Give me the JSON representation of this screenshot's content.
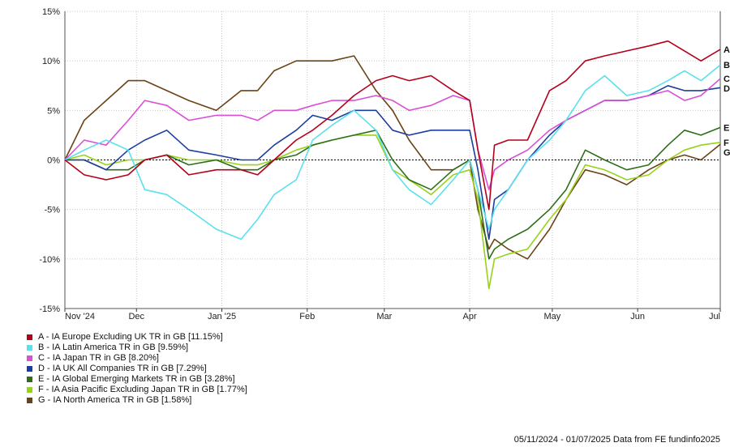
{
  "chart_data": {
    "type": "line",
    "x_axis": {
      "labels": [
        "Nov '24",
        "Dec",
        "Jan '25",
        "Feb",
        "Mar",
        "Apr",
        "May",
        "Jun",
        "Jul"
      ],
      "range": [
        "2024-11-05",
        "2025-07-01"
      ]
    },
    "y_axis": {
      "range": [
        -15,
        15
      ],
      "ticks": [
        15,
        10,
        5,
        0,
        -5,
        -10,
        -15
      ],
      "tick_labels": [
        "15%",
        "10%",
        "5%",
        "0%",
        "-5%",
        "-10%",
        "-15%"
      ],
      "reference_line": 0
    },
    "grid": true,
    "legend_position": "bottom-left",
    "series": [
      {
        "id": "A",
        "legend": "A - IA Europe Excluding UK TR in GB [11.15%]",
        "color": "#b5001b",
        "points": [
          [
            "2024-11-05",
            0
          ],
          [
            "2024-11-12",
            -1.5
          ],
          [
            "2024-11-20",
            -2
          ],
          [
            "2024-11-28",
            -1.5
          ],
          [
            "2024-12-04",
            0
          ],
          [
            "2024-12-12",
            0.5
          ],
          [
            "2024-12-20",
            -1.5
          ],
          [
            "2024-12-30",
            -1
          ],
          [
            "2025-01-08",
            -1
          ],
          [
            "2025-01-14",
            -1.5
          ],
          [
            "2025-01-20",
            0
          ],
          [
            "2025-01-28",
            2
          ],
          [
            "2025-02-03",
            3
          ],
          [
            "2025-02-10",
            4.5
          ],
          [
            "2025-02-18",
            6.5
          ],
          [
            "2025-02-26",
            8
          ],
          [
            "2025-03-04",
            8.5
          ],
          [
            "2025-03-10",
            8
          ],
          [
            "2025-03-18",
            8.5
          ],
          [
            "2025-03-26",
            7
          ],
          [
            "2025-04-01",
            6
          ],
          [
            "2025-04-04",
            1
          ],
          [
            "2025-04-08",
            -5
          ],
          [
            "2025-04-10",
            1.5
          ],
          [
            "2025-04-15",
            2
          ],
          [
            "2025-04-22",
            2
          ],
          [
            "2025-04-30",
            7
          ],
          [
            "2025-05-06",
            8
          ],
          [
            "2025-05-13",
            10
          ],
          [
            "2025-05-20",
            10.5
          ],
          [
            "2025-05-28",
            11
          ],
          [
            "2025-06-05",
            11.5
          ],
          [
            "2025-06-12",
            12
          ],
          [
            "2025-06-18",
            11
          ],
          [
            "2025-06-24",
            10
          ],
          [
            "2025-07-01",
            11.15
          ]
        ]
      },
      {
        "id": "B",
        "legend": "B - IA Latin America TR in GB [9.59%]",
        "color": "#5ae1ed",
        "points": [
          [
            "2024-11-05",
            0
          ],
          [
            "2024-11-12",
            1
          ],
          [
            "2024-11-20",
            2
          ],
          [
            "2024-11-28",
            1
          ],
          [
            "2024-12-04",
            -3
          ],
          [
            "2024-12-12",
            -3.5
          ],
          [
            "2024-12-20",
            -5
          ],
          [
            "2024-12-30",
            -7
          ],
          [
            "2025-01-08",
            -8
          ],
          [
            "2025-01-14",
            -6
          ],
          [
            "2025-01-20",
            -3.5
          ],
          [
            "2025-01-28",
            -2
          ],
          [
            "2025-02-03",
            2
          ],
          [
            "2025-02-10",
            3.5
          ],
          [
            "2025-02-18",
            5
          ],
          [
            "2025-02-26",
            3
          ],
          [
            "2025-03-04",
            -1
          ],
          [
            "2025-03-10",
            -3
          ],
          [
            "2025-03-18",
            -4.5
          ],
          [
            "2025-03-26",
            -2
          ],
          [
            "2025-04-01",
            0
          ],
          [
            "2025-04-04",
            -3
          ],
          [
            "2025-04-08",
            -7
          ],
          [
            "2025-04-10",
            -5
          ],
          [
            "2025-04-15",
            -3
          ],
          [
            "2025-04-22",
            0
          ],
          [
            "2025-04-30",
            2
          ],
          [
            "2025-05-06",
            4
          ],
          [
            "2025-05-13",
            7
          ],
          [
            "2025-05-20",
            8.5
          ],
          [
            "2025-05-28",
            6.5
          ],
          [
            "2025-06-05",
            7
          ],
          [
            "2025-06-12",
            8
          ],
          [
            "2025-06-18",
            9
          ],
          [
            "2025-06-24",
            8
          ],
          [
            "2025-07-01",
            9.59
          ]
        ]
      },
      {
        "id": "C",
        "legend": "C - IA Japan TR in GB [8.20%]",
        "color": "#d94fd6",
        "points": [
          [
            "2024-11-05",
            0
          ],
          [
            "2024-11-12",
            2
          ],
          [
            "2024-11-20",
            1.5
          ],
          [
            "2024-11-28",
            4
          ],
          [
            "2024-12-04",
            6
          ],
          [
            "2024-12-12",
            5.5
          ],
          [
            "2024-12-20",
            4
          ],
          [
            "2024-12-30",
            4.5
          ],
          [
            "2025-01-08",
            4.5
          ],
          [
            "2025-01-14",
            4
          ],
          [
            "2025-01-20",
            5
          ],
          [
            "2025-01-28",
            5
          ],
          [
            "2025-02-03",
            5.5
          ],
          [
            "2025-02-10",
            6
          ],
          [
            "2025-02-18",
            6
          ],
          [
            "2025-02-26",
            6.5
          ],
          [
            "2025-03-04",
            6
          ],
          [
            "2025-03-10",
            5
          ],
          [
            "2025-03-18",
            5.5
          ],
          [
            "2025-03-26",
            6.5
          ],
          [
            "2025-04-01",
            6
          ],
          [
            "2025-04-04",
            1
          ],
          [
            "2025-04-08",
            -3
          ],
          [
            "2025-04-10",
            -1
          ],
          [
            "2025-04-15",
            0
          ],
          [
            "2025-04-22",
            1
          ],
          [
            "2025-04-30",
            3
          ],
          [
            "2025-05-06",
            4
          ],
          [
            "2025-05-13",
            5
          ],
          [
            "2025-05-20",
            6
          ],
          [
            "2025-05-28",
            6
          ],
          [
            "2025-06-05",
            6.5
          ],
          [
            "2025-06-12",
            7
          ],
          [
            "2025-06-18",
            6
          ],
          [
            "2025-06-24",
            6.5
          ],
          [
            "2025-07-01",
            8.2
          ]
        ]
      },
      {
        "id": "D",
        "legend": "D - IA UK All Companies TR in GB [7.29%]",
        "color": "#1c3e9e",
        "points": [
          [
            "2024-11-05",
            0
          ],
          [
            "2024-11-12",
            0
          ],
          [
            "2024-11-20",
            -1
          ],
          [
            "2024-11-28",
            1
          ],
          [
            "2024-12-04",
            2
          ],
          [
            "2024-12-12",
            3
          ],
          [
            "2024-12-20",
            1
          ],
          [
            "2024-12-30",
            0.5
          ],
          [
            "2025-01-08",
            0
          ],
          [
            "2025-01-14",
            0
          ],
          [
            "2025-01-20",
            1.5
          ],
          [
            "2025-01-28",
            3
          ],
          [
            "2025-02-03",
            4.5
          ],
          [
            "2025-02-10",
            4
          ],
          [
            "2025-02-18",
            5
          ],
          [
            "2025-02-26",
            5
          ],
          [
            "2025-03-04",
            3
          ],
          [
            "2025-03-10",
            2.5
          ],
          [
            "2025-03-18",
            3
          ],
          [
            "2025-03-26",
            3
          ],
          [
            "2025-04-01",
            3
          ],
          [
            "2025-04-04",
            -1
          ],
          [
            "2025-04-08",
            -8
          ],
          [
            "2025-04-10",
            -4
          ],
          [
            "2025-04-15",
            -3
          ],
          [
            "2025-04-22",
            0
          ],
          [
            "2025-04-30",
            2.5
          ],
          [
            "2025-05-06",
            4
          ],
          [
            "2025-05-13",
            5
          ],
          [
            "2025-05-20",
            6
          ],
          [
            "2025-05-28",
            6
          ],
          [
            "2025-06-05",
            6.5
          ],
          [
            "2025-06-12",
            7.5
          ],
          [
            "2025-06-18",
            7
          ],
          [
            "2025-06-24",
            7
          ],
          [
            "2025-07-01",
            7.29
          ]
        ]
      },
      {
        "id": "E",
        "legend": "E - IA Global Emerging Markets TR in GB [3.28%]",
        "color": "#2e6e19",
        "points": [
          [
            "2024-11-05",
            0
          ],
          [
            "2024-11-12",
            0
          ],
          [
            "2024-11-20",
            -1
          ],
          [
            "2024-11-28",
            -1
          ],
          [
            "2024-12-04",
            0
          ],
          [
            "2024-12-12",
            0.5
          ],
          [
            "2024-12-20",
            -0.5
          ],
          [
            "2024-12-30",
            0
          ],
          [
            "2025-01-08",
            -1
          ],
          [
            "2025-01-14",
            -1
          ],
          [
            "2025-01-20",
            0
          ],
          [
            "2025-01-28",
            0.5
          ],
          [
            "2025-02-03",
            1.5
          ],
          [
            "2025-02-10",
            2
          ],
          [
            "2025-02-18",
            2.5
          ],
          [
            "2025-02-26",
            3
          ],
          [
            "2025-03-04",
            0
          ],
          [
            "2025-03-10",
            -2
          ],
          [
            "2025-03-18",
            -3
          ],
          [
            "2025-03-26",
            -1
          ],
          [
            "2025-04-01",
            0
          ],
          [
            "2025-04-04",
            -3
          ],
          [
            "2025-04-08",
            -10
          ],
          [
            "2025-04-10",
            -9
          ],
          [
            "2025-04-15",
            -8
          ],
          [
            "2025-04-22",
            -7
          ],
          [
            "2025-04-30",
            -5
          ],
          [
            "2025-05-06",
            -3
          ],
          [
            "2025-05-13",
            1
          ],
          [
            "2025-05-20",
            0
          ],
          [
            "2025-05-28",
            -1
          ],
          [
            "2025-06-05",
            -0.5
          ],
          [
            "2025-06-12",
            1.5
          ],
          [
            "2025-06-18",
            3
          ],
          [
            "2025-06-24",
            2.5
          ],
          [
            "2025-07-01",
            3.28
          ]
        ]
      },
      {
        "id": "F",
        "legend": "F - IA Asia Pacific Excluding Japan TR in GB [1.77%]",
        "color": "#98d21b",
        "points": [
          [
            "2024-11-05",
            0
          ],
          [
            "2024-11-12",
            0.5
          ],
          [
            "2024-11-20",
            -0.5
          ],
          [
            "2024-11-28",
            0
          ],
          [
            "2024-12-04",
            0
          ],
          [
            "2024-12-12",
            0.5
          ],
          [
            "2024-12-20",
            0
          ],
          [
            "2024-12-30",
            0
          ],
          [
            "2025-01-08",
            -0.5
          ],
          [
            "2025-01-14",
            -0.5
          ],
          [
            "2025-01-20",
            0
          ],
          [
            "2025-01-28",
            1
          ],
          [
            "2025-02-03",
            1.5
          ],
          [
            "2025-02-10",
            2
          ],
          [
            "2025-02-18",
            2.5
          ],
          [
            "2025-02-26",
            2.5
          ],
          [
            "2025-03-04",
            -1
          ],
          [
            "2025-03-10",
            -2
          ],
          [
            "2025-03-18",
            -3.5
          ],
          [
            "2025-03-26",
            -1.5
          ],
          [
            "2025-04-01",
            -1
          ],
          [
            "2025-04-04",
            -4
          ],
          [
            "2025-04-08",
            -13
          ],
          [
            "2025-04-10",
            -10
          ],
          [
            "2025-04-15",
            -9.5
          ],
          [
            "2025-04-22",
            -9
          ],
          [
            "2025-04-30",
            -6
          ],
          [
            "2025-05-06",
            -4
          ],
          [
            "2025-05-13",
            -0.5
          ],
          [
            "2025-05-20",
            -1
          ],
          [
            "2025-05-28",
            -2
          ],
          [
            "2025-06-05",
            -1.5
          ],
          [
            "2025-06-12",
            0
          ],
          [
            "2025-06-18",
            1
          ],
          [
            "2025-06-24",
            1.5
          ],
          [
            "2025-07-01",
            1.77
          ]
        ]
      },
      {
        "id": "G",
        "legend": "G - IA North America TR in GB [1.58%]",
        "color": "#6b4314",
        "points": [
          [
            "2024-11-05",
            0
          ],
          [
            "2024-11-12",
            4
          ],
          [
            "2024-11-20",
            6
          ],
          [
            "2024-11-28",
            8
          ],
          [
            "2024-12-04",
            8
          ],
          [
            "2024-12-12",
            7
          ],
          [
            "2024-12-20",
            6
          ],
          [
            "2024-12-30",
            5
          ],
          [
            "2025-01-08",
            7
          ],
          [
            "2025-01-14",
            7
          ],
          [
            "2025-01-20",
            9
          ],
          [
            "2025-01-28",
            10
          ],
          [
            "2025-02-03",
            10
          ],
          [
            "2025-02-10",
            10
          ],
          [
            "2025-02-18",
            10.5
          ],
          [
            "2025-02-26",
            7
          ],
          [
            "2025-03-04",
            5
          ],
          [
            "2025-03-10",
            2
          ],
          [
            "2025-03-18",
            -1
          ],
          [
            "2025-03-26",
            -1
          ],
          [
            "2025-04-01",
            0
          ],
          [
            "2025-04-04",
            -5
          ],
          [
            "2025-04-08",
            -9
          ],
          [
            "2025-04-10",
            -8
          ],
          [
            "2025-04-15",
            -9
          ],
          [
            "2025-04-22",
            -10
          ],
          [
            "2025-04-30",
            -7
          ],
          [
            "2025-05-06",
            -4
          ],
          [
            "2025-05-13",
            -1
          ],
          [
            "2025-05-20",
            -1.5
          ],
          [
            "2025-05-28",
            -2.5
          ],
          [
            "2025-06-05",
            -1
          ],
          [
            "2025-06-12",
            0
          ],
          [
            "2025-06-18",
            0.5
          ],
          [
            "2025-06-24",
            0
          ],
          [
            "2025-07-01",
            1.58
          ]
        ]
      }
    ]
  },
  "footer": "05/11/2024 - 01/07/2025 Data from FE fundinfo2025"
}
